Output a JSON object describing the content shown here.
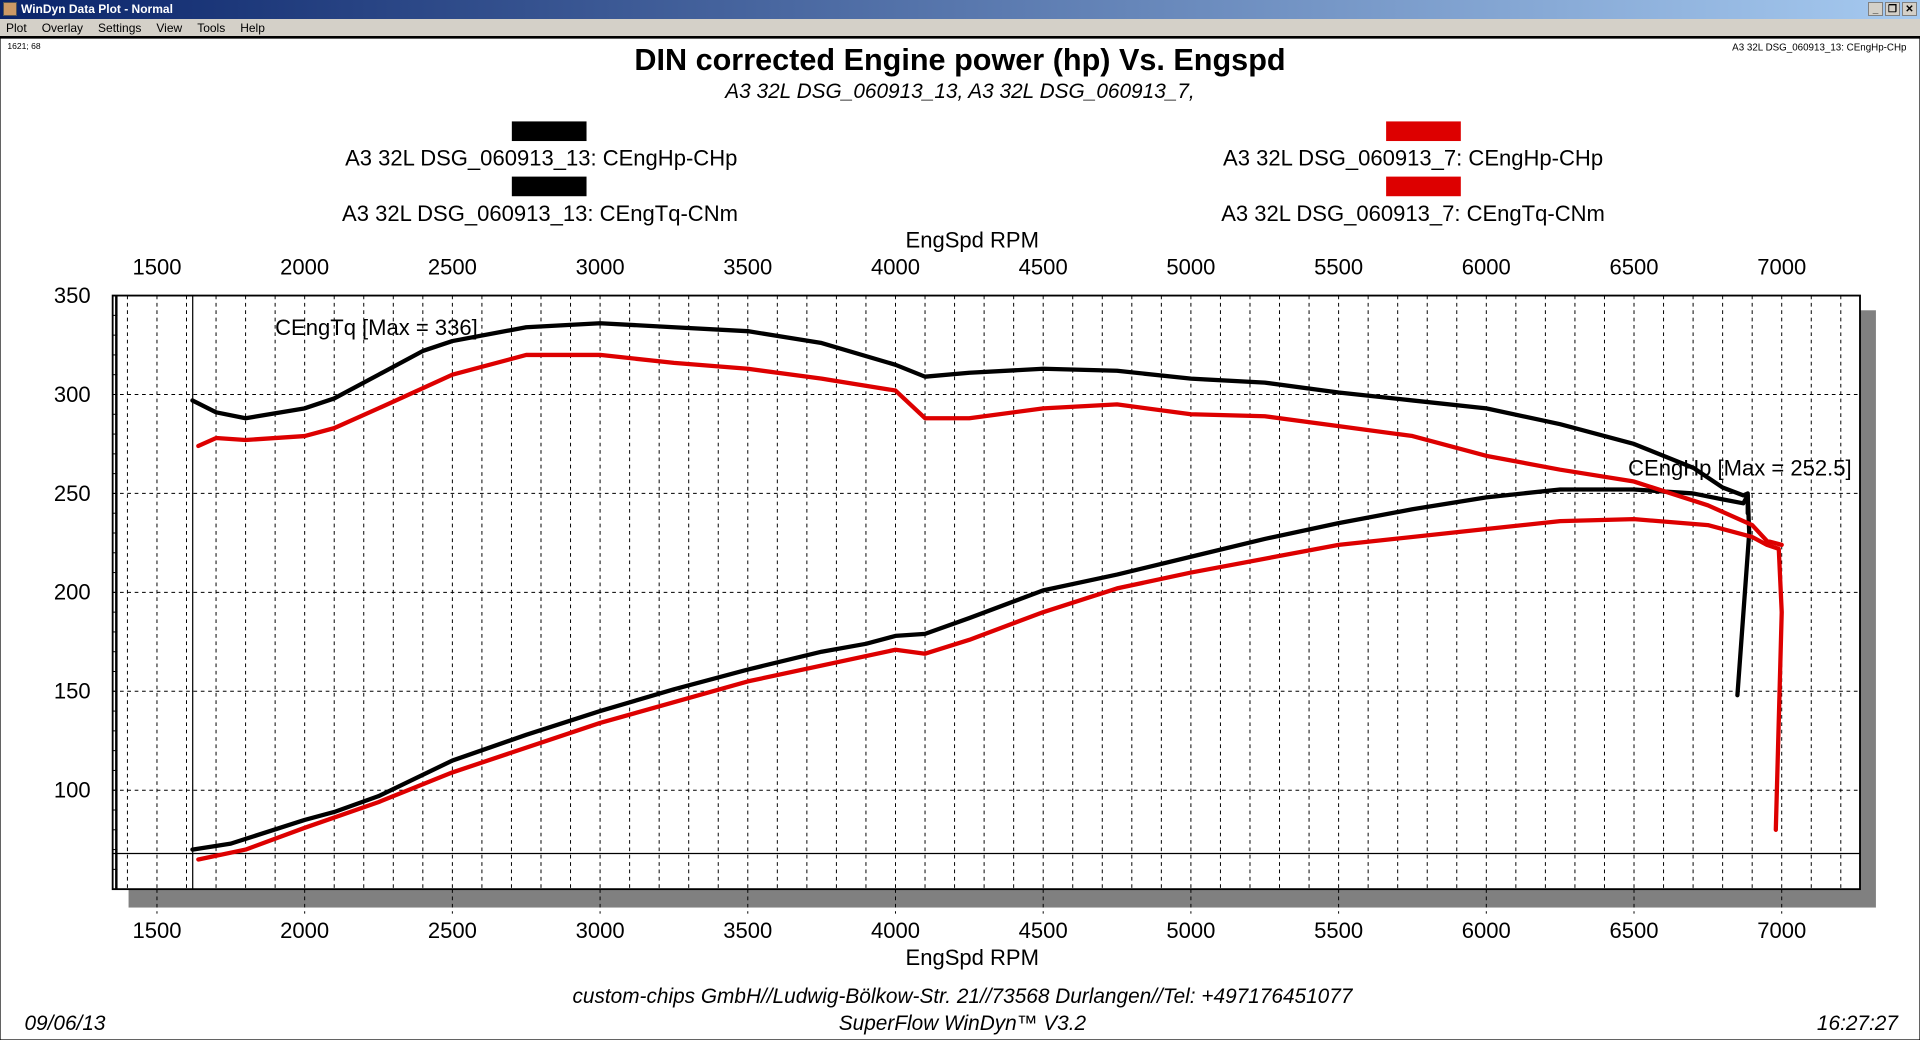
{
  "window": {
    "title": "WinDyn Data Plot - Normal",
    "min": "_",
    "max": "❐",
    "close": "✕"
  },
  "menu": [
    "Plot",
    "Overlay",
    "Settings",
    "View",
    "Tools",
    "Help"
  ],
  "cursor_readout": "1621; 68",
  "active_trace": "A3 32L DSG_060913_13: CEngHp-CHp",
  "footer": {
    "company": "custom-chips GmbH//Ludwig-Bölkow-Str. 21//73568 Durlangen//Tel: +497176451077",
    "software": "SuperFlow WinDyn™ V3.2",
    "date": "09/06/13",
    "time": "16:27:27"
  },
  "chart_data": {
    "type": "line",
    "title": "DIN corrected Engine power (hp) Vs. Engspd",
    "subtitle": "A3 32L DSG_060913_13, A3 32L DSG_060913_7,",
    "xlabel": "EngSpd RPM",
    "xlim": [
      1350,
      7265
    ],
    "ylim": [
      50,
      350
    ],
    "xticks": [
      1500,
      2000,
      2500,
      3000,
      3500,
      4000,
      4500,
      5000,
      5500,
      6000,
      6500,
      7000
    ],
    "yticks": [
      100,
      150,
      200,
      250,
      300,
      350
    ],
    "grid": true,
    "cursor": {
      "x": 1621,
      "y": 68
    },
    "legend": [
      {
        "label": "A3 32L DSG_060913_13: CEngHp-CHp",
        "color": "#000000"
      },
      {
        "label": "A3 32L DSG_060913_7: CEngHp-CHp",
        "color": "#dd0000"
      },
      {
        "label": "A3 32L DSG_060913_13: CEngTq-CNm",
        "color": "#000000"
      },
      {
        "label": "A3 32L DSG_060913_7: CEngTq-CNm",
        "color": "#dd0000"
      }
    ],
    "annotations": [
      {
        "text": "CEngTq [Max = 336]",
        "x": 1900,
        "y": 330
      },
      {
        "text": "CEngHp [Max = 252.5]",
        "x": 6480,
        "y": 259
      }
    ],
    "series": [
      {
        "name": "A3 32L DSG_060913_13: CEngHp-CHp",
        "color": "#000000",
        "points": [
          [
            1620,
            70
          ],
          [
            1750,
            73
          ],
          [
            2000,
            85
          ],
          [
            2100,
            89
          ],
          [
            2250,
            97
          ],
          [
            2500,
            115
          ],
          [
            2750,
            128
          ],
          [
            3000,
            140
          ],
          [
            3250,
            151
          ],
          [
            3500,
            161
          ],
          [
            3750,
            170
          ],
          [
            3900,
            174
          ],
          [
            4000,
            178
          ],
          [
            4100,
            179
          ],
          [
            4250,
            187
          ],
          [
            4500,
            201
          ],
          [
            4750,
            209
          ],
          [
            5000,
            218
          ],
          [
            5250,
            227
          ],
          [
            5500,
            235
          ],
          [
            5750,
            242
          ],
          [
            6000,
            248
          ],
          [
            6250,
            252
          ],
          [
            6500,
            252
          ],
          [
            6700,
            250
          ],
          [
            6800,
            247
          ],
          [
            6870,
            245
          ],
          [
            6885,
            249
          ],
          [
            6890,
            230
          ],
          [
            6850,
            148
          ]
        ]
      },
      {
        "name": "A3 32L DSG_060913_7: CEngHp-CHp",
        "color": "#dd0000",
        "points": [
          [
            1640,
            65
          ],
          [
            1800,
            70
          ],
          [
            2000,
            81
          ],
          [
            2250,
            94
          ],
          [
            2500,
            109
          ],
          [
            3000,
            134
          ],
          [
            3500,
            155
          ],
          [
            4000,
            171
          ],
          [
            4100,
            169
          ],
          [
            4250,
            176
          ],
          [
            4500,
            190
          ],
          [
            4750,
            202
          ],
          [
            5000,
            210
          ],
          [
            5500,
            224
          ],
          [
            6000,
            232
          ],
          [
            6250,
            236
          ],
          [
            6500,
            237
          ],
          [
            6750,
            234
          ],
          [
            6900,
            228
          ],
          [
            6950,
            224
          ],
          [
            6990,
            222
          ],
          [
            7000,
            190
          ],
          [
            6980,
            80
          ]
        ]
      },
      {
        "name": "A3 32L DSG_060913_13: CEngTq-CNm",
        "color": "#000000",
        "points": [
          [
            1620,
            297
          ],
          [
            1700,
            291
          ],
          [
            1800,
            288
          ],
          [
            2000,
            293
          ],
          [
            2100,
            298
          ],
          [
            2250,
            310
          ],
          [
            2400,
            322
          ],
          [
            2500,
            327
          ],
          [
            2750,
            334
          ],
          [
            3000,
            336
          ],
          [
            3250,
            334
          ],
          [
            3500,
            332
          ],
          [
            3750,
            326
          ],
          [
            4000,
            315
          ],
          [
            4100,
            309
          ],
          [
            4250,
            311
          ],
          [
            4500,
            313
          ],
          [
            4750,
            312
          ],
          [
            5000,
            308
          ],
          [
            5250,
            306
          ],
          [
            5500,
            301
          ],
          [
            5750,
            297
          ],
          [
            6000,
            293
          ],
          [
            6250,
            285
          ],
          [
            6500,
            275
          ],
          [
            6700,
            263
          ],
          [
            6800,
            253
          ],
          [
            6870,
            249
          ],
          [
            6885,
            250
          ],
          [
            6885,
            240
          ]
        ]
      },
      {
        "name": "A3 32L DSG_060913_7: CEngTq-CNm",
        "color": "#dd0000",
        "points": [
          [
            1640,
            274
          ],
          [
            1700,
            278
          ],
          [
            1800,
            277
          ],
          [
            2000,
            279
          ],
          [
            2100,
            283
          ],
          [
            2250,
            293
          ],
          [
            2500,
            310
          ],
          [
            2750,
            320
          ],
          [
            3000,
            320
          ],
          [
            3250,
            316
          ],
          [
            3500,
            313
          ],
          [
            3750,
            308
          ],
          [
            4000,
            302
          ],
          [
            4100,
            288
          ],
          [
            4250,
            288
          ],
          [
            4500,
            293
          ],
          [
            4750,
            295
          ],
          [
            5000,
            290
          ],
          [
            5250,
            289
          ],
          [
            5500,
            284
          ],
          [
            5750,
            279
          ],
          [
            6000,
            269
          ],
          [
            6250,
            262
          ],
          [
            6500,
            256
          ],
          [
            6750,
            244
          ],
          [
            6900,
            234
          ],
          [
            6950,
            226
          ],
          [
            7000,
            224
          ]
        ]
      }
    ]
  }
}
